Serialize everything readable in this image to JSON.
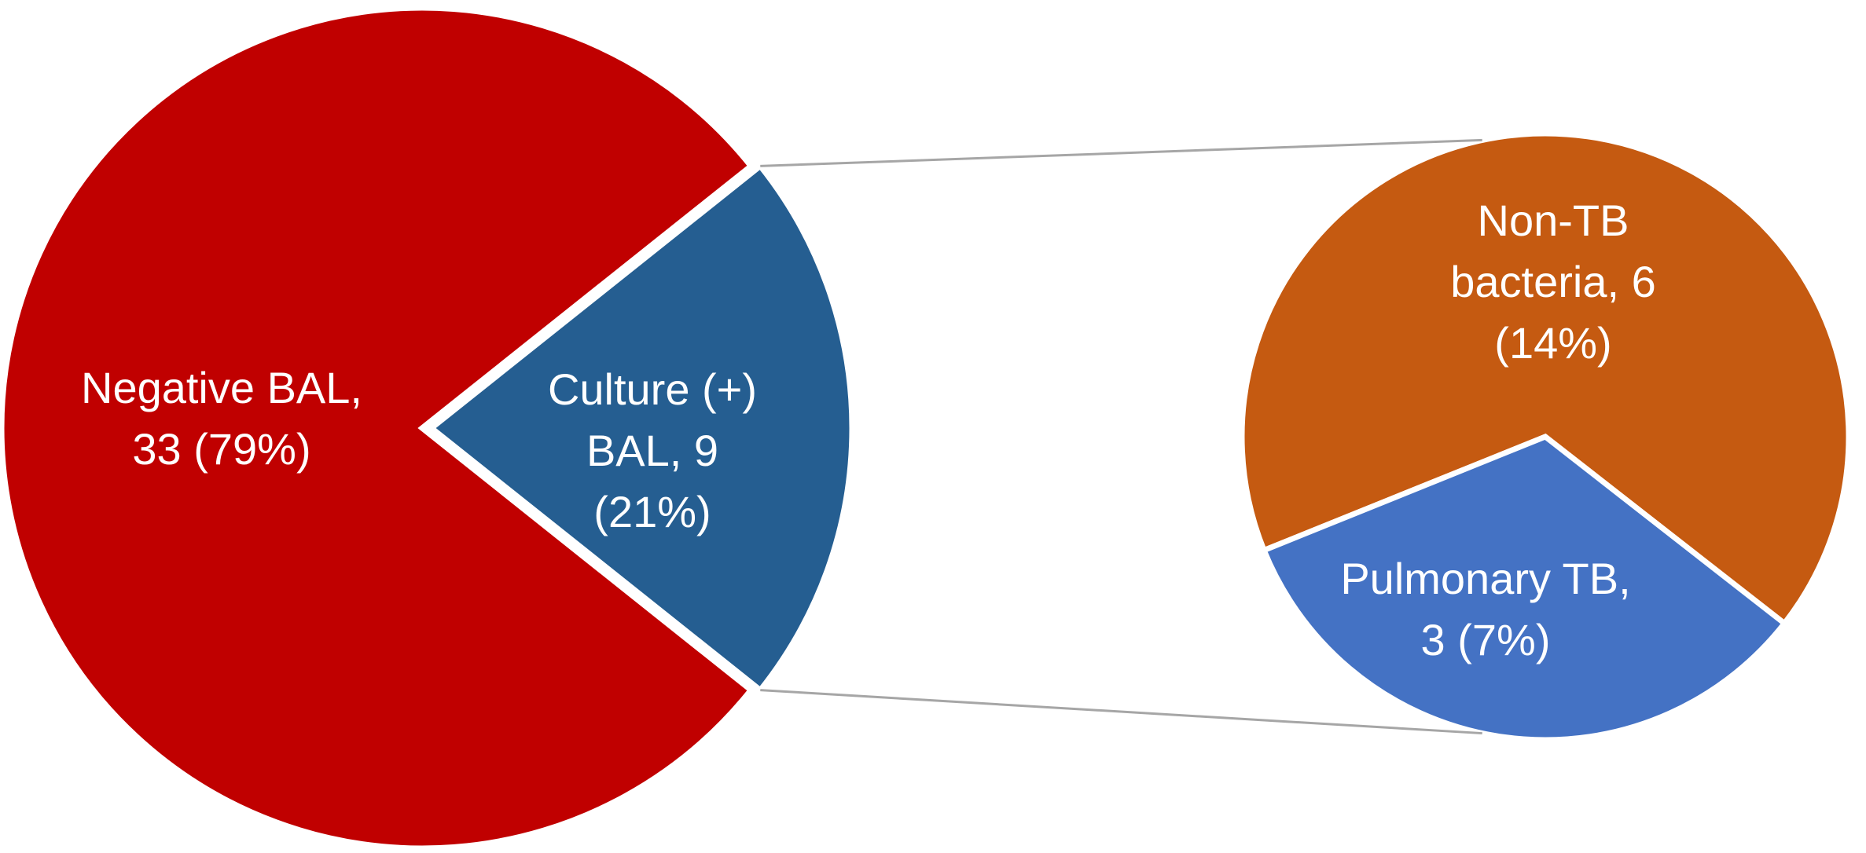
{
  "chart_data": [
    {
      "type": "pie",
      "values": [
        33,
        9
      ],
      "value_labels": [
        [
          "Negative BAL,",
          "33 (79%)"
        ],
        [
          "Culture (+)",
          "BAL, 9",
          "(21%)"
        ]
      ],
      "colors": [
        "#c00000",
        "#255e91"
      ]
    },
    {
      "type": "pie",
      "values": [
        6,
        3
      ],
      "value_labels": [
        [
          "Non-TB",
          "bacteria, 6",
          "(14%)"
        ],
        [
          "Pulmonary TB,",
          "3 (7%)"
        ]
      ],
      "colors": [
        "#c55a11",
        "#4472c4"
      ]
    }
  ]
}
